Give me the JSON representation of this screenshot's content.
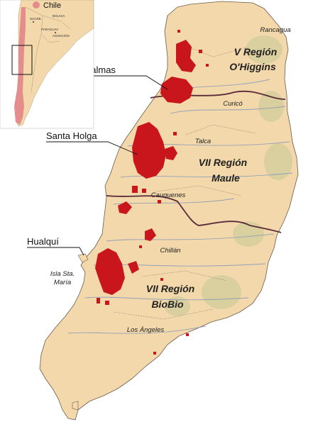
{
  "legend": {
    "label": "Chile",
    "color": "#e58c8c"
  },
  "inset": {
    "labels": [
      "BOLIVIA",
      "PARAGUAY",
      "SUCRE",
      "ASUNCIÓN"
    ]
  },
  "regions": [
    {
      "line1": "V Región",
      "line2": "O'Higgins"
    },
    {
      "line1": "VII Región",
      "line2": "Maule"
    },
    {
      "line1": "VII Región",
      "line2": "BioBio"
    }
  ],
  "cities": [
    "Rancagua",
    "Curicó",
    "Talca",
    "Cauquenes",
    "Chillán",
    "Los Ángeles",
    "Isla Sta.",
    "María"
  ],
  "fire_areas": [
    "Las Palmas",
    "Santa Holga",
    "Hualquí"
  ],
  "colors": {
    "land": "#f2d8ab",
    "fire": "#c8161c",
    "region_border": "#5a2a3a",
    "river": "#8a9bb8",
    "ocean": "#ffffff"
  }
}
